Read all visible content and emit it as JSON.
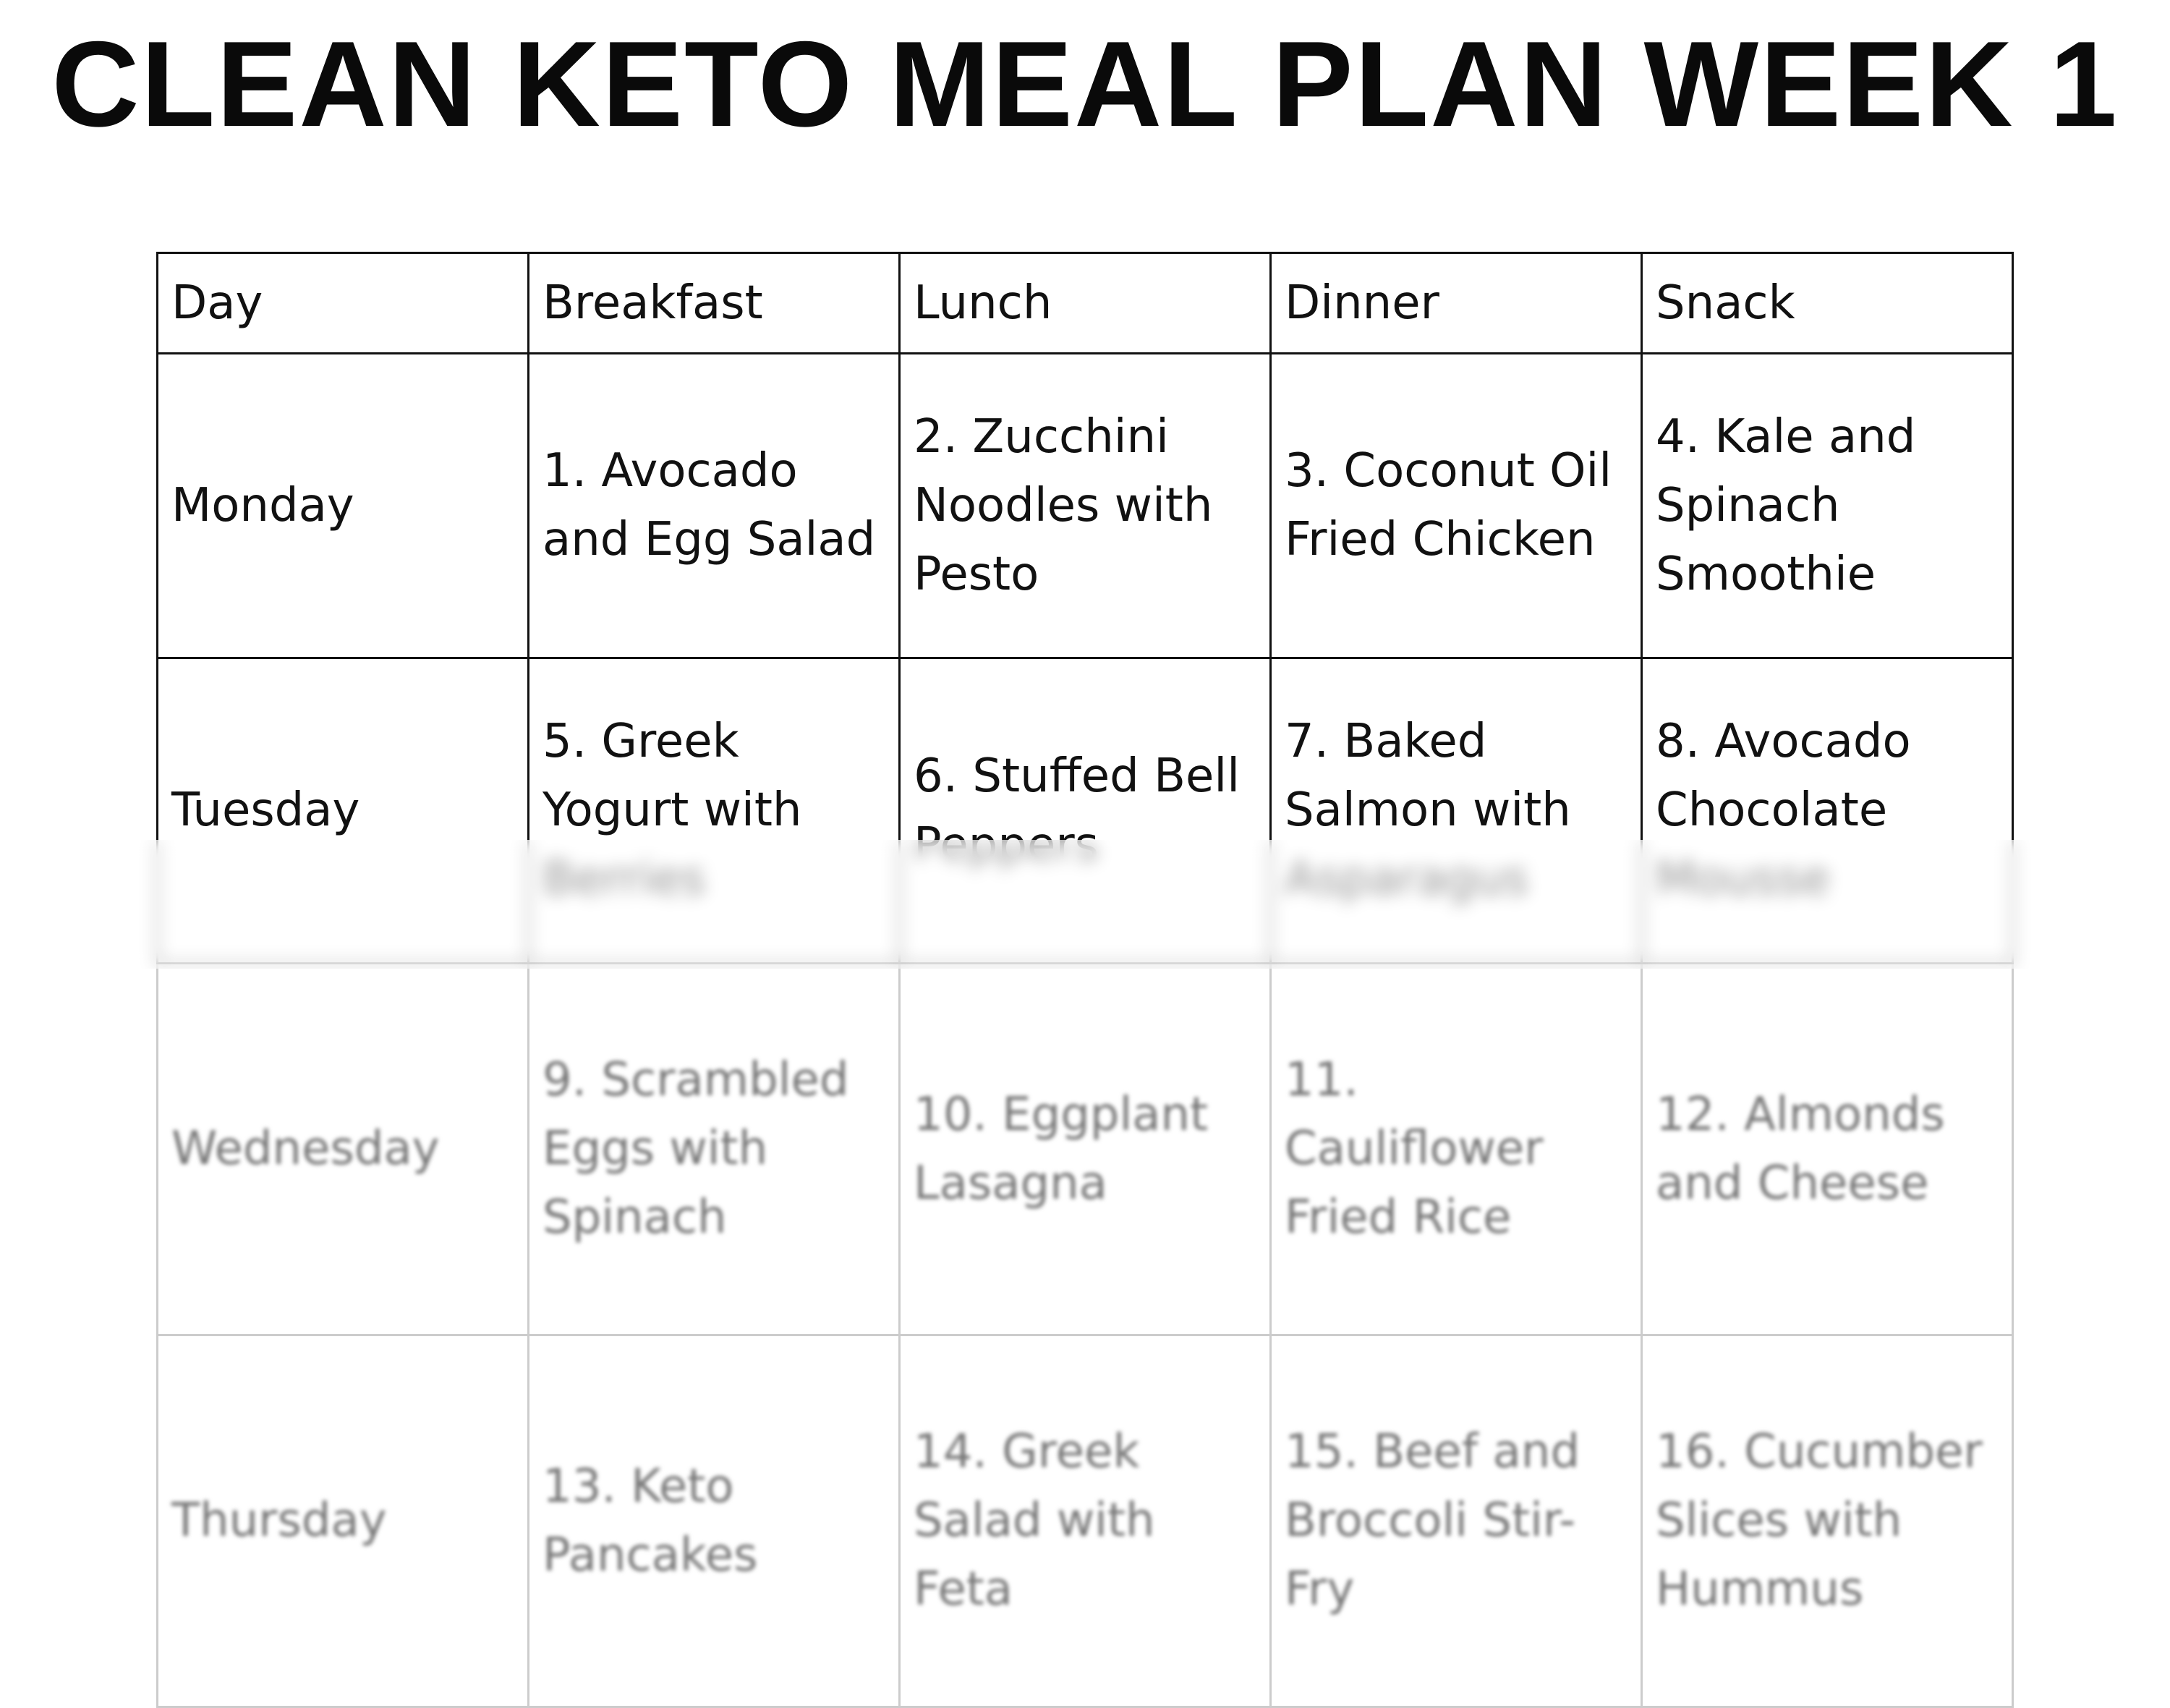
{
  "title": "CLEAN KETO MEAL PLAN WEEK 1",
  "table": {
    "headers": [
      "Day",
      "Breakfast",
      "Lunch",
      "Dinner",
      "Snack"
    ],
    "rows": [
      [
        "Monday",
        "1. Avocado and Egg Salad",
        "2. Zucchini Noodles with Pesto",
        "3. Coconut Oil Fried Chicken",
        "4. Kale and Spinach Smoothie"
      ],
      [
        "Tuesday",
        "5. Greek Yogurt with Berries",
        "6. Stuffed Bell Peppers",
        "7. Baked Salmon with Asparagus",
        "8. Avocado Chocolate Mousse"
      ],
      [
        "Wednesday",
        "9. Scrambled Eggs with Spinach",
        "10. Eggplant Lasagna",
        "11. Cauliflower Fried Rice",
        "12. Almonds and Cheese"
      ],
      [
        "Thursday",
        "13. Keto Pancakes",
        "14. Greek Salad with Feta",
        "15. Beef and Broccoli Stir-Fry",
        "16. Cucumber Slices with Hummus"
      ]
    ]
  }
}
